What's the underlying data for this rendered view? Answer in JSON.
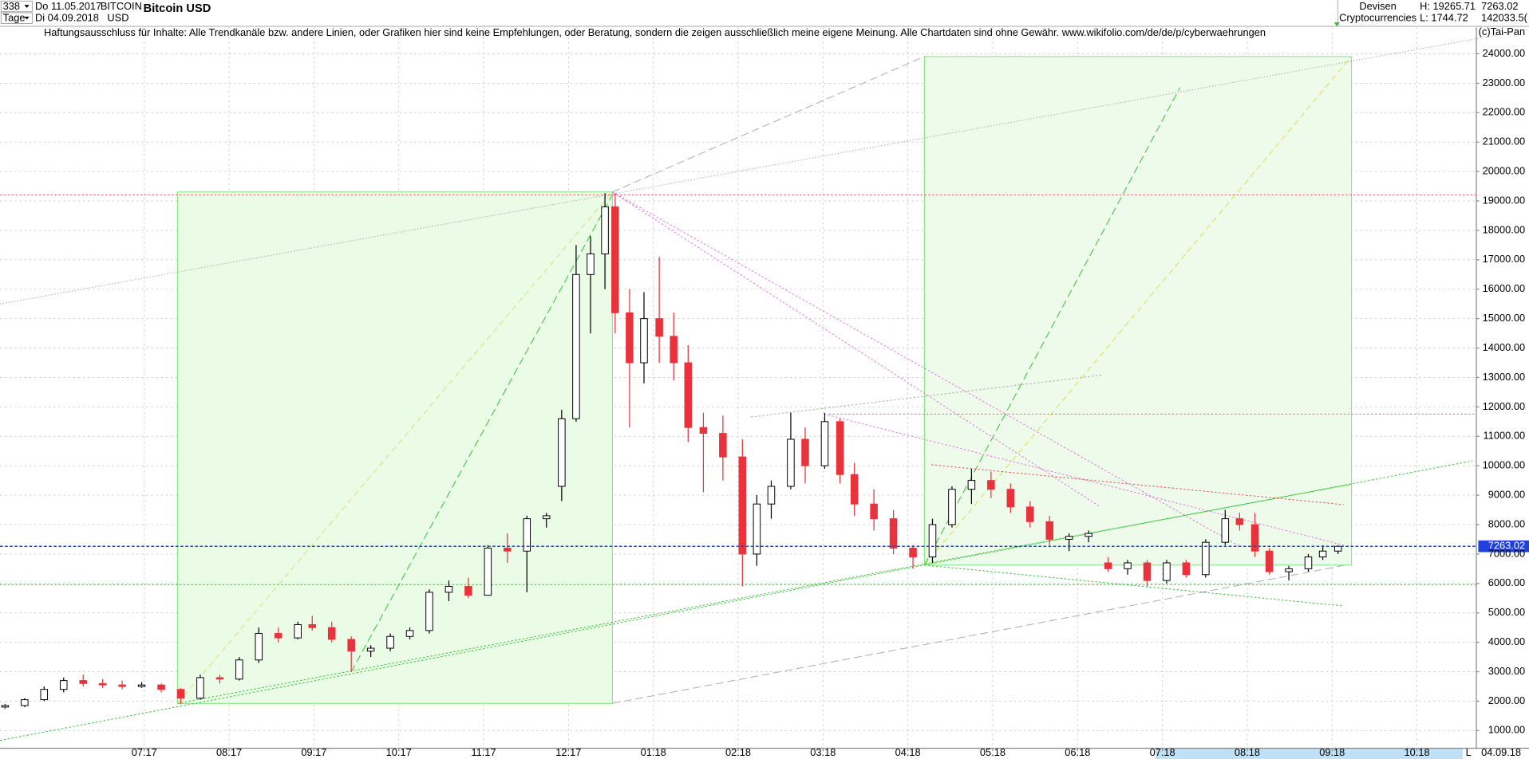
{
  "header": {
    "period": "338",
    "unit": "Tage",
    "from": "Do 11.05.2017",
    "to": "Di 04.09.2018",
    "symbol": "BITCOIN",
    "currency": "USD",
    "name": "Bitcoin USD",
    "market": "Devisen",
    "category": "Cryptocurrencies",
    "high": "H: 19265.71",
    "low": "L: 1744.72",
    "last": "7263.02",
    "volume": "142033.5(",
    "disclaimer": "Haftungsausschluss für Inhalte: Alle Trendkanäle bzw. andere Linien, oder Grafiken hier sind keine Empfehlungen, oder Beratung, sondern die zeigen ausschließlich meine eigene Meinung. Alle Chartdaten sind ohne Gewähr.  www.wikifolio.com/de/de/p/cyberwaehrungen",
    "copyright": "(c)Tai-Pan",
    "date": "04.09.18",
    "scale": "L"
  },
  "chart_data": {
    "type": "candlestick",
    "up_color": "#000000",
    "down_color": "#e8323c",
    "grid": true,
    "last_price": 7263.02,
    "last_color": "#2040e0",
    "xlim": [
      5.3,
      22.7
    ],
    "xticks": [
      {
        "value": 7,
        "label": "07.17"
      },
      {
        "value": 8,
        "label": "08.17"
      },
      {
        "value": 9,
        "label": "09.17"
      },
      {
        "value": 10,
        "label": "10.17"
      },
      {
        "value": 11,
        "label": "11.17"
      },
      {
        "value": 12,
        "label": "12.17"
      },
      {
        "value": 13,
        "label": "01.18"
      },
      {
        "value": 14,
        "label": "02.18"
      },
      {
        "value": 15,
        "label": "03.18"
      },
      {
        "value": 16,
        "label": "04.18"
      },
      {
        "value": 17,
        "label": "05.18"
      },
      {
        "value": 18,
        "label": "06.18"
      },
      {
        "value": 19,
        "label": "07.18"
      },
      {
        "value": 20,
        "label": "08.18"
      },
      {
        "value": 21,
        "label": "09.18"
      },
      {
        "value": 22,
        "label": "10.18"
      }
    ],
    "ylim": [
      400,
      24900
    ],
    "yticks": [
      {
        "value": 1000,
        "label": "1000.00"
      },
      {
        "value": 2000,
        "label": "2000.00"
      },
      {
        "value": 3000,
        "label": "3000.00"
      },
      {
        "value": 4000,
        "label": "4000.00"
      },
      {
        "value": 5000,
        "label": "5000.00"
      },
      {
        "value": 6000,
        "label": "6000.00"
      },
      {
        "value": 7000,
        "label": "7000.00"
      },
      {
        "value": 8000,
        "label": "8000.00"
      },
      {
        "value": 9000,
        "label": "9000.00"
      },
      {
        "value": 10000,
        "label": "10000.00"
      },
      {
        "value": 11000,
        "label": "11000.00"
      },
      {
        "value": 12000,
        "label": "12000.00"
      },
      {
        "value": 13000,
        "label": "13000.00"
      },
      {
        "value": 14000,
        "label": "14000.00"
      },
      {
        "value": 15000,
        "label": "15000.00"
      },
      {
        "value": 16000,
        "label": "16000.00"
      },
      {
        "value": 17000,
        "label": "17000.00"
      },
      {
        "value": 18000,
        "label": "18000.00"
      },
      {
        "value": 19000,
        "label": "19000.00"
      },
      {
        "value": 20000,
        "label": "20000.00"
      },
      {
        "value": 21000,
        "label": "21000.00"
      },
      {
        "value": 22000,
        "label": "22000.00"
      },
      {
        "value": 23000,
        "label": "23000.00"
      },
      {
        "value": 24000,
        "label": "24000.00"
      }
    ],
    "candles": [
      {
        "x": 5.36,
        "open": 1800,
        "high": 1900,
        "low": 1750,
        "close": 1850
      },
      {
        "x": 5.59,
        "open": 1850,
        "high": 2100,
        "low": 1800,
        "close": 2050
      },
      {
        "x": 5.82,
        "open": 2050,
        "high": 2500,
        "low": 2000,
        "close": 2400
      },
      {
        "x": 6.05,
        "open": 2400,
        "high": 2800,
        "low": 2300,
        "close": 2700
      },
      {
        "x": 6.28,
        "open": 2700,
        "high": 2900,
        "low": 2500,
        "close": 2600
      },
      {
        "x": 6.51,
        "open": 2600,
        "high": 2750,
        "low": 2450,
        "close": 2550
      },
      {
        "x": 6.74,
        "open": 2550,
        "high": 2700,
        "low": 2400,
        "close": 2500
      },
      {
        "x": 6.97,
        "open": 2500,
        "high": 2650,
        "low": 2450,
        "close": 2550
      },
      {
        "x": 7.2,
        "open": 2550,
        "high": 2600,
        "low": 2300,
        "close": 2400
      },
      {
        "x": 7.43,
        "open": 2400,
        "high": 2450,
        "low": 1900,
        "close": 2100
      },
      {
        "x": 7.66,
        "open": 2100,
        "high": 2900,
        "low": 2050,
        "close": 2800
      },
      {
        "x": 7.89,
        "open": 2800,
        "high": 2900,
        "low": 2600,
        "close": 2750
      },
      {
        "x": 8.12,
        "open": 2750,
        "high": 3500,
        "low": 2700,
        "close": 3400
      },
      {
        "x": 8.35,
        "open": 3400,
        "high": 4500,
        "low": 3300,
        "close": 4300
      },
      {
        "x": 8.58,
        "open": 4300,
        "high": 4500,
        "low": 4000,
        "close": 4150
      },
      {
        "x": 8.81,
        "open": 4150,
        "high": 4700,
        "low": 4100,
        "close": 4600
      },
      {
        "x": 8.98,
        "open": 4600,
        "high": 4900,
        "low": 4400,
        "close": 4500
      },
      {
        "x": 9.21,
        "open": 4500,
        "high": 4700,
        "low": 4000,
        "close": 4100
      },
      {
        "x": 9.44,
        "open": 4100,
        "high": 4200,
        "low": 3000,
        "close": 3700
      },
      {
        "x": 9.67,
        "open": 3700,
        "high": 3900,
        "low": 3500,
        "close": 3800
      },
      {
        "x": 9.9,
        "open": 3800,
        "high": 4300,
        "low": 3700,
        "close": 4200
      },
      {
        "x": 10.13,
        "open": 4200,
        "high": 4500,
        "low": 4100,
        "close": 4400
      },
      {
        "x": 10.36,
        "open": 4400,
        "high": 5800,
        "low": 4300,
        "close": 5700
      },
      {
        "x": 10.59,
        "open": 5700,
        "high": 6100,
        "low": 5400,
        "close": 5900
      },
      {
        "x": 10.82,
        "open": 5900,
        "high": 6200,
        "low": 5500,
        "close": 5600
      },
      {
        "x": 11.05,
        "open": 5600,
        "high": 7300,
        "low": 5600,
        "close": 7200
      },
      {
        "x": 11.28,
        "open": 7200,
        "high": 7700,
        "low": 6700,
        "close": 7100
      },
      {
        "x": 11.51,
        "open": 7100,
        "high": 8300,
        "low": 5700,
        "close": 8200
      },
      {
        "x": 11.74,
        "open": 8200,
        "high": 8400,
        "low": 7900,
        "close": 8300
      },
      {
        "x": 11.92,
        "open": 9300,
        "high": 11900,
        "low": 8800,
        "close": 11600
      },
      {
        "x": 12.09,
        "open": 11600,
        "high": 17500,
        "low": 11500,
        "close": 16500
      },
      {
        "x": 12.26,
        "open": 16500,
        "high": 17800,
        "low": 14500,
        "close": 17200
      },
      {
        "x": 12.43,
        "open": 17200,
        "high": 19265,
        "low": 16000,
        "close": 18800
      },
      {
        "x": 12.55,
        "open": 18800,
        "high": 19265,
        "low": 14500,
        "close": 15200
      },
      {
        "x": 12.72,
        "open": 15200,
        "high": 16000,
        "low": 11300,
        "close": 13500
      },
      {
        "x": 12.89,
        "open": 13500,
        "high": 15900,
        "low": 12800,
        "close": 15000
      },
      {
        "x": 13.07,
        "open": 15000,
        "high": 17100,
        "low": 13500,
        "close": 14400
      },
      {
        "x": 13.24,
        "open": 14400,
        "high": 15200,
        "low": 12900,
        "close": 13500
      },
      {
        "x": 13.41,
        "open": 13500,
        "high": 14100,
        "low": 10800,
        "close": 11300
      },
      {
        "x": 13.59,
        "open": 11300,
        "high": 11800,
        "low": 9100,
        "close": 11100
      },
      {
        "x": 13.82,
        "open": 11100,
        "high": 11700,
        "low": 9500,
        "close": 10300
      },
      {
        "x": 14.05,
        "open": 10300,
        "high": 10900,
        "low": 5900,
        "close": 7000
      },
      {
        "x": 14.22,
        "open": 7000,
        "high": 9000,
        "low": 6600,
        "close": 8700
      },
      {
        "x": 14.39,
        "open": 8700,
        "high": 9500,
        "low": 8200,
        "close": 9300
      },
      {
        "x": 14.62,
        "open": 9300,
        "high": 11800,
        "low": 9200,
        "close": 10900
      },
      {
        "x": 14.79,
        "open": 10900,
        "high": 11300,
        "low": 9400,
        "close": 10000
      },
      {
        "x": 15.02,
        "open": 10000,
        "high": 11800,
        "low": 9900,
        "close": 11500
      },
      {
        "x": 15.2,
        "open": 11500,
        "high": 11600,
        "low": 9400,
        "close": 9700
      },
      {
        "x": 15.37,
        "open": 9700,
        "high": 10100,
        "low": 8300,
        "close": 8700
      },
      {
        "x": 15.6,
        "open": 8700,
        "high": 9200,
        "low": 7800,
        "close": 8200
      },
      {
        "x": 15.83,
        "open": 8200,
        "high": 8500,
        "low": 7000,
        "close": 7200
      },
      {
        "x": 16.06,
        "open": 7200,
        "high": 7300,
        "low": 6500,
        "close": 6900
      },
      {
        "x": 16.29,
        "open": 6900,
        "high": 8200,
        "low": 6700,
        "close": 8000
      },
      {
        "x": 16.52,
        "open": 8000,
        "high": 9300,
        "low": 7900,
        "close": 9200
      },
      {
        "x": 16.75,
        "open": 9200,
        "high": 9900,
        "low": 8700,
        "close": 9500
      },
      {
        "x": 16.98,
        "open": 9500,
        "high": 9800,
        "low": 8900,
        "close": 9200
      },
      {
        "x": 17.21,
        "open": 9200,
        "high": 9400,
        "low": 8400,
        "close": 8600
      },
      {
        "x": 17.44,
        "open": 8600,
        "high": 8800,
        "low": 7900,
        "close": 8100
      },
      {
        "x": 17.67,
        "open": 8100,
        "high": 8300,
        "low": 7300,
        "close": 7500
      },
      {
        "x": 17.9,
        "open": 7500,
        "high": 7700,
        "low": 7100,
        "close": 7600
      },
      {
        "x": 18.13,
        "open": 7600,
        "high": 7800,
        "low": 7400,
        "close": 7700
      },
      {
        "x": 18.36,
        "open": 6700,
        "high": 6900,
        "low": 6400,
        "close": 6500
      },
      {
        "x": 18.59,
        "open": 6500,
        "high": 6800,
        "low": 6300,
        "close": 6700
      },
      {
        "x": 18.82,
        "open": 6700,
        "high": 6800,
        "low": 5900,
        "close": 6100
      },
      {
        "x": 19.05,
        "open": 6100,
        "high": 6800,
        "low": 6000,
        "close": 6700
      },
      {
        "x": 19.28,
        "open": 6700,
        "high": 6800,
        "low": 6200,
        "close": 6300
      },
      {
        "x": 19.51,
        "open": 6300,
        "high": 7500,
        "low": 6200,
        "close": 7400
      },
      {
        "x": 19.74,
        "open": 7400,
        "high": 8500,
        "low": 7300,
        "close": 8200
      },
      {
        "x": 19.91,
        "open": 8200,
        "high": 8400,
        "low": 7800,
        "close": 8000
      },
      {
        "x": 20.09,
        "open": 8000,
        "high": 8400,
        "low": 6900,
        "close": 7100
      },
      {
        "x": 20.26,
        "open": 7100,
        "high": 7200,
        "low": 6300,
        "close": 6400
      },
      {
        "x": 20.49,
        "open": 6400,
        "high": 6600,
        "low": 6100,
        "close": 6500
      },
      {
        "x": 20.72,
        "open": 6500,
        "high": 7000,
        "low": 6400,
        "close": 6900
      },
      {
        "x": 20.89,
        "open": 6900,
        "high": 7300,
        "low": 6800,
        "close": 7100
      },
      {
        "x": 21.07,
        "open": 7100,
        "high": 7300,
        "low": 7000,
        "close": 7263
      }
    ]
  }
}
